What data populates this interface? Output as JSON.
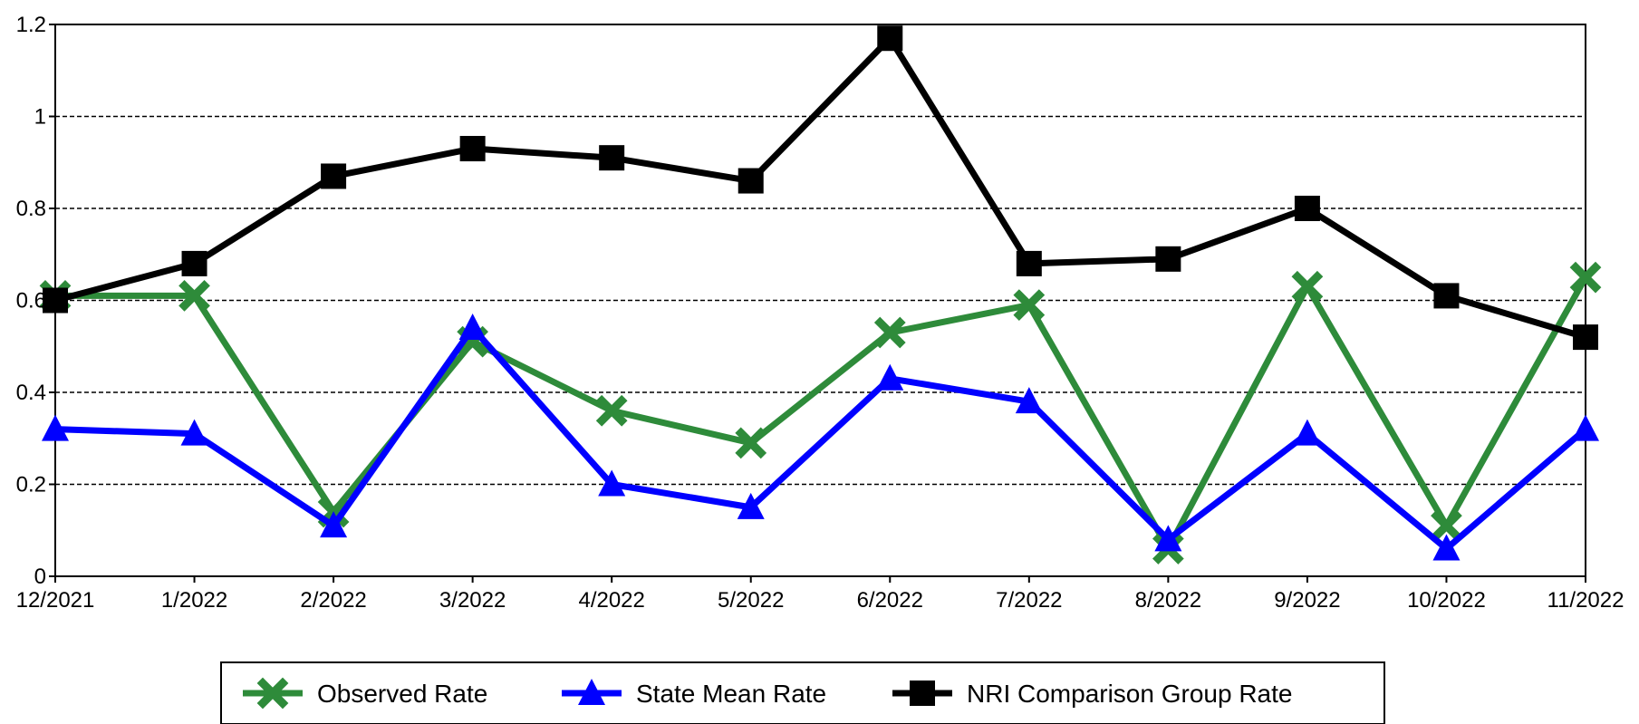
{
  "chart_data": {
    "type": "line",
    "title": "",
    "xlabel": "",
    "ylabel": "",
    "categories": [
      "12/2021",
      "1/2022",
      "2/2022",
      "3/2022",
      "4/2022",
      "5/2022",
      "6/2022",
      "7/2022",
      "8/2022",
      "9/2022",
      "10/2022",
      "11/2022"
    ],
    "ylim": [
      0,
      1.2
    ],
    "yticks": [
      0,
      0.2,
      0.4,
      0.6,
      0.8,
      1,
      1.2
    ],
    "ytick_labels": [
      "0",
      "0.2",
      "0.4",
      "0.6",
      "0.8",
      "1",
      "1.2"
    ],
    "grid": "horizontal dashed",
    "legend_position": "bottom",
    "series": [
      {
        "name": "Observed Rate",
        "color": "#2e8b3a",
        "marker": "x",
        "values": [
          0.61,
          0.61,
          0.14,
          0.51,
          0.36,
          0.29,
          0.53,
          0.59,
          0.06,
          0.63,
          0.11,
          0.65
        ]
      },
      {
        "name": "State Mean Rate",
        "color": "#0000ff",
        "marker": "triangle",
        "values": [
          0.32,
          0.31,
          0.11,
          0.54,
          0.2,
          0.15,
          0.43,
          0.38,
          0.08,
          0.31,
          0.06,
          0.32
        ]
      },
      {
        "name": "NRI Comparison Group Rate",
        "color": "#000000",
        "marker": "square",
        "values": [
          0.6,
          0.68,
          0.87,
          0.93,
          0.91,
          0.86,
          1.17,
          0.68,
          0.69,
          0.8,
          0.61,
          0.52
        ]
      }
    ]
  }
}
